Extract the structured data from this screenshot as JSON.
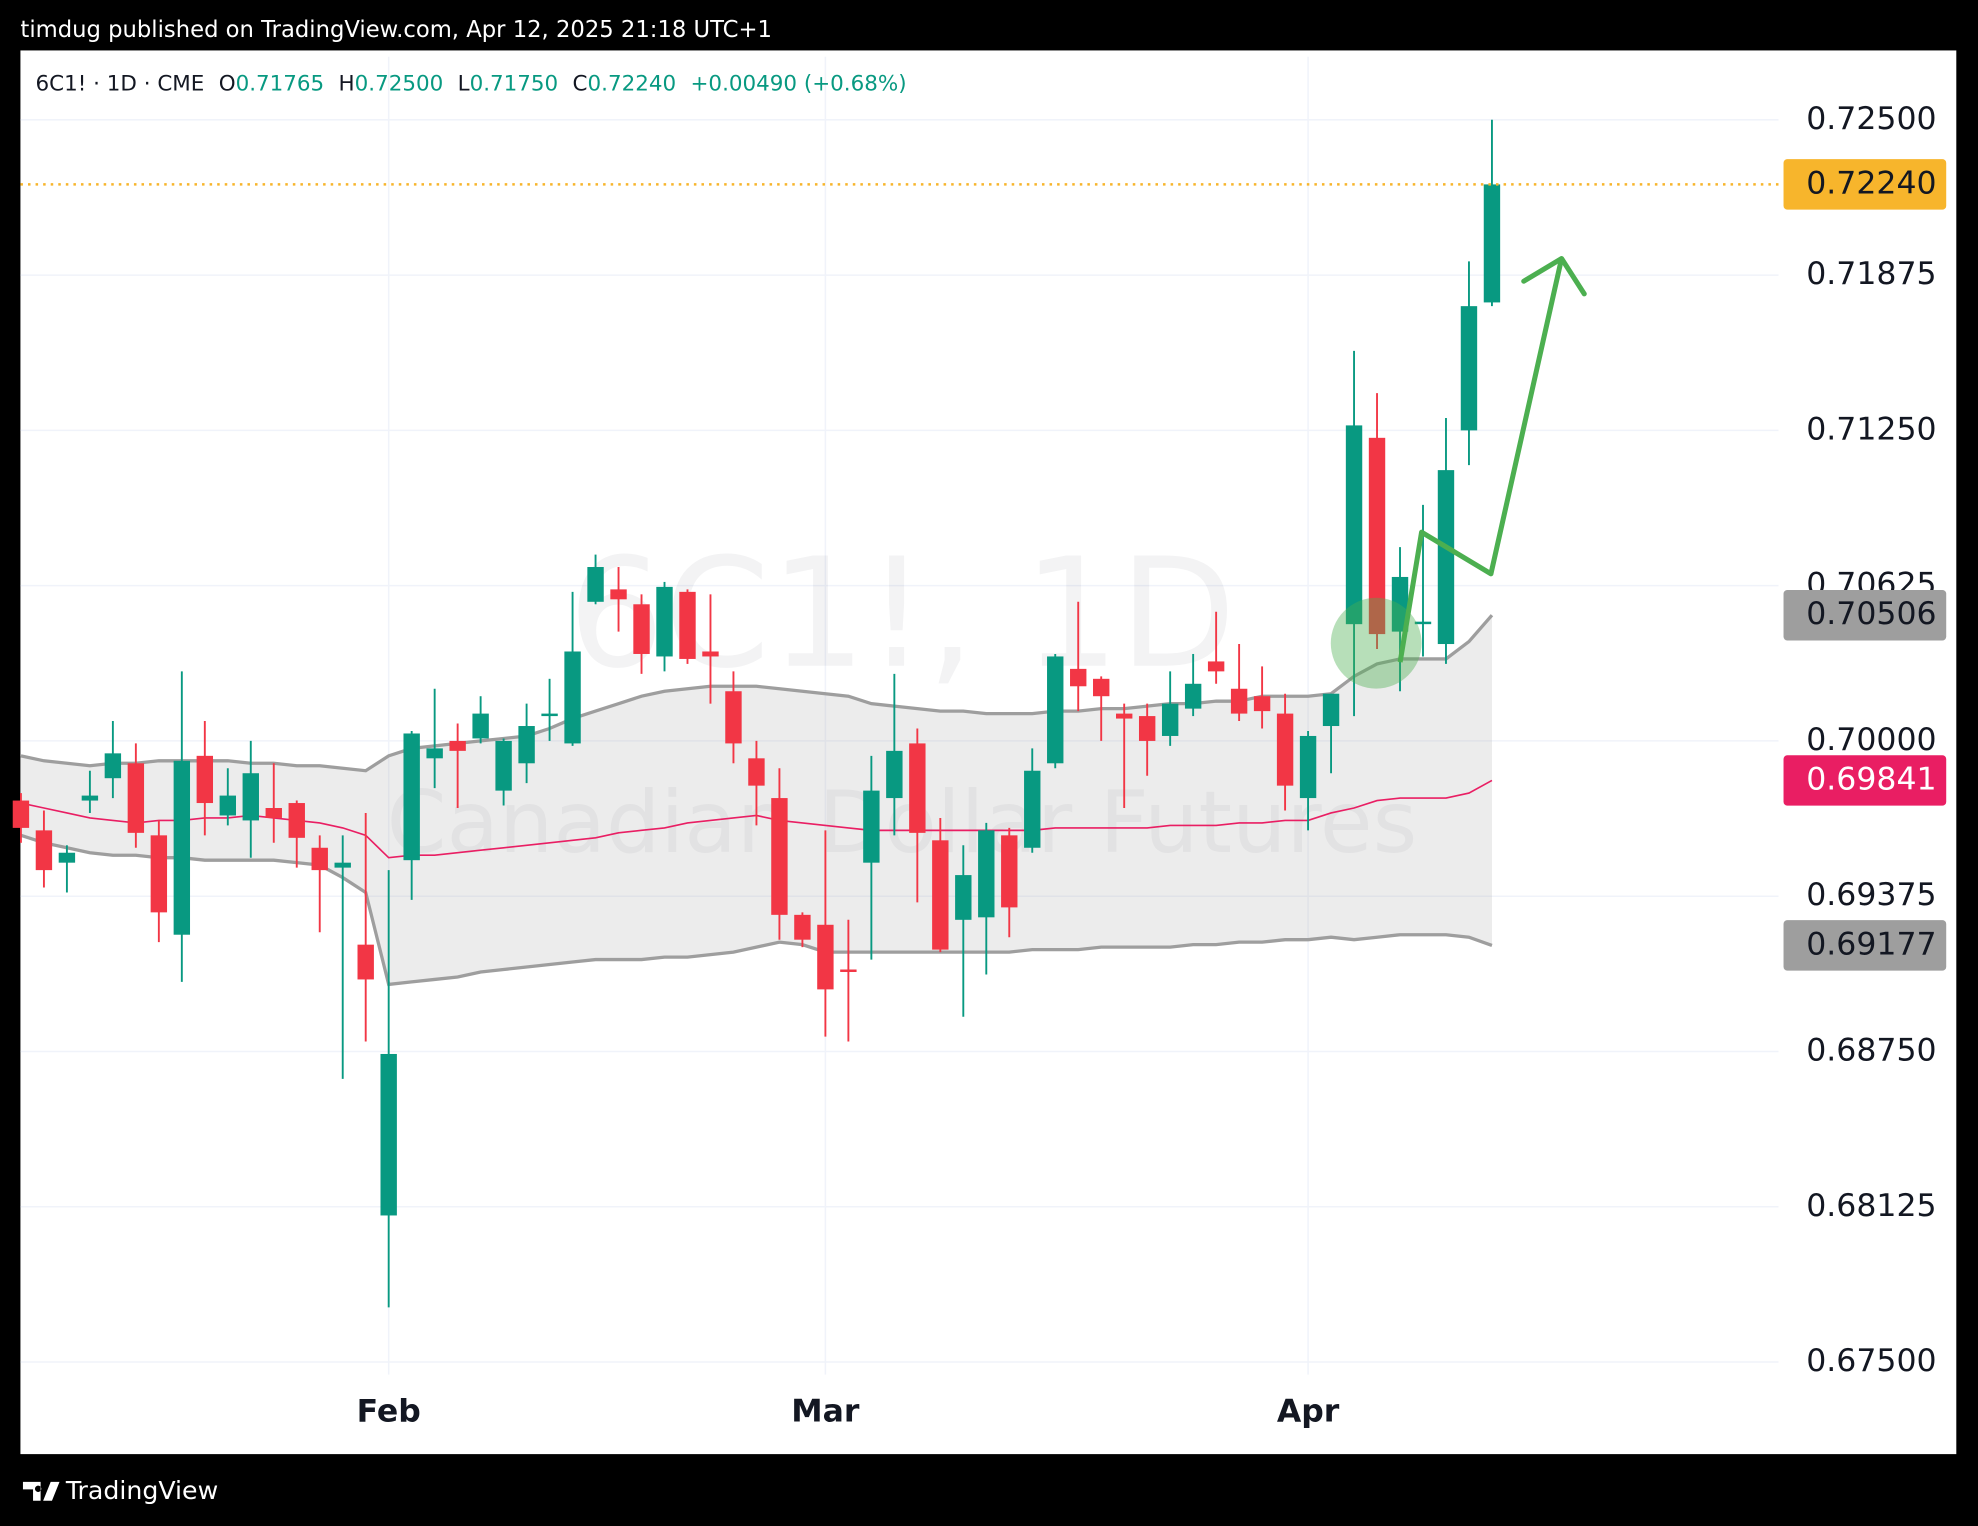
{
  "header": {
    "publisher": "timdug published on TradingView.com, Apr 12, 2025 21:18 UTC+1"
  },
  "footer": {
    "brand": "TradingView"
  },
  "chart_data": {
    "type": "candlestick",
    "legend": {
      "symbol": "6C1! · 1D · CME",
      "fields": [
        {
          "key": "O",
          "value": "0.71765"
        },
        {
          "key": "H",
          "value": "0.72500"
        },
        {
          "key": "L",
          "value": "0.71750"
        },
        {
          "key": "C",
          "value": "0.72240"
        }
      ],
      "change": "+0.00490 (+0.68%)"
    },
    "watermark": [
      "6C1!, 1D",
      "Canadian Dollar Futures"
    ],
    "categories": [
      null,
      null,
      null,
      null,
      null,
      null,
      null,
      null,
      null,
      null,
      null,
      null,
      null,
      null,
      null,
      null,
      "Feb",
      null,
      null,
      null,
      null,
      null,
      null,
      null,
      null,
      null,
      null,
      null,
      null,
      null,
      null,
      null,
      null,
      null,
      null,
      "Mar",
      null,
      null,
      null,
      null,
      null,
      null,
      null,
      null,
      null,
      null,
      null,
      null,
      null,
      null,
      null,
      null,
      null,
      null,
      null,
      null,
      "Apr",
      null,
      null,
      null,
      null,
      null,
      null,
      null,
      null
    ],
    "open": [
      0.6976,
      0.6964,
      0.6951,
      0.6976,
      0.6985,
      0.6991,
      0.6962,
      0.6922,
      0.6994,
      0.697,
      0.6968,
      0.6973,
      0.6975,
      0.6957,
      0.6949,
      0.6918,
      0.6809,
      0.6952,
      0.6993,
      0.7,
      0.7001,
      0.698,
      0.6991,
      0.701,
      0.6999,
      0.7056,
      0.7061,
      0.7055,
      0.7034,
      0.706,
      0.7036,
      0.702,
      0.6993,
      0.6977,
      0.693,
      0.6926,
      0.6908,
      0.6951,
      0.6977,
      0.6999,
      0.696,
      0.6928,
      0.6929,
      0.6962,
      0.6957,
      0.6991,
      0.7029,
      0.7025,
      0.7011,
      0.701,
      0.7002,
      0.7013,
      0.7032,
      0.7021,
      0.7018,
      0.7011,
      0.6977,
      0.7006,
      0.7047,
      0.7122,
      0.7044,
      0.7047,
      0.7039,
      0.7125,
      0.71765
    ],
    "high": [
      0.6979,
      0.6972,
      0.6958,
      0.6988,
      0.7008,
      0.6999,
      0.6968,
      0.7028,
      0.7008,
      0.6989,
      0.7,
      0.6991,
      0.6976,
      0.6962,
      0.6962,
      0.6971,
      0.6948,
      0.7004,
      0.7021,
      0.7007,
      0.7018,
      0.7001,
      0.7015,
      0.7025,
      0.706,
      0.7075,
      0.707,
      0.7059,
      0.7064,
      0.7061,
      0.7059,
      0.7028,
      0.7,
      0.6989,
      0.6931,
      0.6964,
      0.6928,
      0.6994,
      0.7027,
      0.7005,
      0.6969,
      0.6958,
      0.6967,
      0.6965,
      0.6997,
      0.7035,
      0.7056,
      0.7026,
      0.7015,
      0.7015,
      0.7028,
      0.7035,
      0.7052,
      0.7039,
      0.703,
      0.7019,
      0.7004,
      0.7019,
      0.7157,
      0.714,
      0.7078,
      0.7095,
      0.713,
      0.7193,
      0.725
    ],
    "low": [
      0.6959,
      0.6941,
      0.6939,
      0.6971,
      0.6977,
      0.6957,
      0.6919,
      0.6903,
      0.6962,
      0.6966,
      0.6953,
      0.6959,
      0.6949,
      0.6923,
      0.6864,
      0.6879,
      0.6772,
      0.6936,
      0.6981,
      0.6973,
      0.6999,
      0.6974,
      0.6983,
      0.7,
      0.6998,
      0.7055,
      0.7044,
      0.7027,
      0.7028,
      0.7031,
      0.7015,
      0.6991,
      0.6966,
      0.692,
      0.6917,
      0.6881,
      0.6879,
      0.6912,
      0.6962,
      0.6935,
      0.6915,
      0.6889,
      0.6906,
      0.6921,
      0.6955,
      0.6989,
      0.7012,
      0.7,
      0.6973,
      0.6986,
      0.6998,
      0.701,
      0.7023,
      0.7008,
      0.7005,
      0.6972,
      0.6964,
      0.6987,
      0.701,
      0.7037,
      0.702,
      0.7034,
      0.7031,
      0.7111,
      0.7175
    ],
    "close": [
      0.6965,
      0.6948,
      0.6955,
      0.6978,
      0.6995,
      0.6963,
      0.6931,
      0.6992,
      0.6975,
      0.6978,
      0.6987,
      0.6969,
      0.6961,
      0.6948,
      0.6951,
      0.6904,
      0.6874,
      0.7003,
      0.6997,
      0.6996,
      0.7011,
      0.7,
      0.7006,
      0.7011,
      0.7036,
      0.707,
      0.7057,
      0.7035,
      0.7062,
      0.7033,
      0.7034,
      0.6999,
      0.6982,
      0.693,
      0.692,
      0.69,
      0.6907,
      0.698,
      0.6996,
      0.6963,
      0.6916,
      0.6946,
      0.6964,
      0.6933,
      0.6988,
      0.7034,
      0.7022,
      0.7018,
      0.7009,
      0.7,
      0.7015,
      0.7023,
      0.7028,
      0.7011,
      0.7012,
      0.6982,
      0.7002,
      0.7019,
      0.7127,
      0.7043,
      0.7066,
      0.7048,
      0.7109,
      0.7175,
      0.7224
    ],
    "last_close_label": "0.72240",
    "up_color": "#089981",
    "down_color": "#f23645",
    "price_line_color": "#f7b52c",
    "bands": [
      {
        "color": "#9e9e9e",
        "label_color": "#9e9e9e",
        "label_text_color": "#131722",
        "values": [
          0.6994,
          0.6992,
          0.6991,
          0.699,
          0.6991,
          0.6991,
          0.6992,
          0.6992,
          0.6992,
          0.6992,
          0.6991,
          0.6991,
          0.699,
          0.699,
          0.6989,
          0.6988,
          0.6994,
          0.6997,
          0.6998,
          0.6999,
          0.7,
          0.7001,
          0.7002,
          0.7005,
          0.7009,
          0.7012,
          0.7015,
          0.7018,
          0.702,
          0.7021,
          0.7022,
          0.7022,
          0.7022,
          0.7021,
          0.702,
          0.7019,
          0.7018,
          0.7015,
          0.7014,
          0.7013,
          0.7012,
          0.7012,
          0.7011,
          0.7011,
          0.7011,
          0.7012,
          0.7012,
          0.7013,
          0.7013,
          0.7014,
          0.7015,
          0.7015,
          0.7016,
          0.7016,
          0.7018,
          0.7018,
          0.7018,
          0.7019,
          0.7026,
          0.7031,
          0.7033,
          0.7033,
          0.7033,
          0.704,
          0.70506
        ]
      },
      {
        "color": "#e91e63",
        "label_color": "#e91e63",
        "label_text_color": "#ffffff",
        "values": [
          0.6975,
          0.6973,
          0.6971,
          0.6969,
          0.6968,
          0.6967,
          0.6968,
          0.6968,
          0.6969,
          0.6969,
          0.697,
          0.6969,
          0.6968,
          0.6967,
          0.6965,
          0.6962,
          0.6953,
          0.6954,
          0.6954,
          0.6955,
          0.6956,
          0.6957,
          0.6958,
          0.6959,
          0.696,
          0.6961,
          0.6963,
          0.6964,
          0.6965,
          0.6967,
          0.6968,
          0.6969,
          0.697,
          0.6968,
          0.6967,
          0.6966,
          0.6965,
          0.6964,
          0.6964,
          0.6964,
          0.6964,
          0.6964,
          0.6964,
          0.6964,
          0.6964,
          0.6965,
          0.6965,
          0.6965,
          0.6965,
          0.6965,
          0.6966,
          0.6966,
          0.6966,
          0.6967,
          0.6967,
          0.6968,
          0.6968,
          0.6971,
          0.6973,
          0.6976,
          0.6977,
          0.6977,
          0.6977,
          0.6979,
          0.69841
        ]
      },
      {
        "color": "#9e9e9e",
        "label_color": "#9e9e9e",
        "label_text_color": "#131722",
        "values": [
          0.6962,
          0.6959,
          0.6957,
          0.6955,
          0.6954,
          0.6954,
          0.6953,
          0.6953,
          0.6952,
          0.6952,
          0.6952,
          0.6952,
          0.6951,
          0.695,
          0.6945,
          0.6939,
          0.6902,
          0.6903,
          0.6904,
          0.6905,
          0.6907,
          0.6908,
          0.6909,
          0.691,
          0.6911,
          0.6912,
          0.6912,
          0.6912,
          0.6913,
          0.6913,
          0.6914,
          0.6915,
          0.6917,
          0.6919,
          0.6918,
          0.6915,
          0.6915,
          0.6915,
          0.6915,
          0.6915,
          0.6915,
          0.6915,
          0.6915,
          0.6915,
          0.6916,
          0.6916,
          0.6916,
          0.6917,
          0.6917,
          0.6917,
          0.6917,
          0.6918,
          0.6918,
          0.6919,
          0.6919,
          0.692,
          0.692,
          0.6921,
          0.692,
          0.6921,
          0.6922,
          0.6922,
          0.6922,
          0.6921,
          0.69177
        ]
      }
    ],
    "band_fill": "#9e9e9e",
    "ylim": [
      0.674,
      0.7275
    ],
    "yticks": [
      {
        "value": 0.725,
        "label": "0.72500"
      },
      {
        "value": 0.71875,
        "label": "0.71875"
      },
      {
        "value": 0.7125,
        "label": "0.71250"
      },
      {
        "value": 0.70625,
        "label": "0.70625"
      },
      {
        "value": 0.7,
        "label": "0.70000"
      },
      {
        "value": 0.69375,
        "label": "0.69375"
      },
      {
        "value": 0.6875,
        "label": "0.68750"
      },
      {
        "value": 0.68125,
        "label": "0.68125"
      },
      {
        "value": 0.675,
        "label": "0.67500"
      }
    ],
    "grid": true
  }
}
